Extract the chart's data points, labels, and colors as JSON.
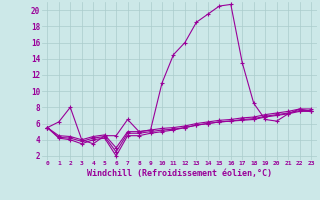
{
  "line1_x": [
    0,
    1,
    2,
    3,
    4,
    5,
    6,
    7,
    8,
    9,
    10,
    11,
    12,
    13,
    14,
    15,
    16,
    17,
    18,
    19,
    20,
    21,
    22,
    23
  ],
  "line1_y": [
    5.5,
    6.2,
    8.0,
    4.0,
    3.5,
    4.5,
    4.5,
    6.5,
    5.0,
    5.2,
    11.0,
    14.5,
    16.0,
    18.5,
    19.5,
    20.5,
    20.7,
    13.5,
    8.5,
    6.5,
    6.3,
    7.2,
    7.8,
    7.5
  ],
  "line2_x": [
    0,
    1,
    2,
    3,
    4,
    5,
    6,
    7,
    8,
    9,
    10,
    11,
    12,
    13,
    14,
    15,
    16,
    17,
    18,
    19,
    20,
    21,
    22,
    23
  ],
  "line2_y": [
    5.5,
    4.2,
    4.0,
    3.5,
    4.0,
    4.2,
    2.0,
    4.5,
    4.5,
    4.8,
    5.0,
    5.2,
    5.5,
    5.8,
    6.0,
    6.2,
    6.3,
    6.4,
    6.5,
    6.8,
    7.0,
    7.2,
    7.5,
    7.5
  ],
  "line3_x": [
    0,
    1,
    2,
    3,
    4,
    5,
    6,
    7,
    8,
    9,
    10,
    11,
    12,
    13,
    14,
    15,
    16,
    17,
    18,
    19,
    20,
    21,
    22,
    23
  ],
  "line3_y": [
    5.5,
    4.3,
    4.2,
    3.8,
    4.2,
    4.4,
    2.5,
    4.8,
    4.8,
    5.0,
    5.2,
    5.3,
    5.5,
    5.8,
    6.0,
    6.2,
    6.3,
    6.5,
    6.6,
    6.9,
    7.1,
    7.3,
    7.6,
    7.6
  ],
  "line4_x": [
    0,
    1,
    2,
    3,
    4,
    5,
    6,
    7,
    8,
    9,
    10,
    11,
    12,
    13,
    14,
    15,
    16,
    17,
    18,
    19,
    20,
    21,
    22,
    23
  ],
  "line4_y": [
    5.5,
    4.5,
    4.4,
    4.0,
    4.4,
    4.6,
    3.0,
    5.0,
    5.0,
    5.2,
    5.4,
    5.5,
    5.7,
    6.0,
    6.2,
    6.4,
    6.5,
    6.7,
    6.8,
    7.1,
    7.3,
    7.5,
    7.8,
    7.8
  ],
  "line_color": "#990099",
  "bg_color": "#cce8e8",
  "grid_color": "#aacccc",
  "xlabel": "Windchill (Refroidissement éolien,°C)",
  "xlim": [
    -0.5,
    23.5
  ],
  "ylim": [
    1.5,
    21.0
  ],
  "xticks": [
    0,
    1,
    2,
    3,
    4,
    5,
    6,
    7,
    8,
    9,
    10,
    11,
    12,
    13,
    14,
    15,
    16,
    17,
    18,
    19,
    20,
    21,
    22,
    23
  ],
  "yticks": [
    2,
    4,
    6,
    8,
    10,
    12,
    14,
    16,
    18,
    20
  ]
}
